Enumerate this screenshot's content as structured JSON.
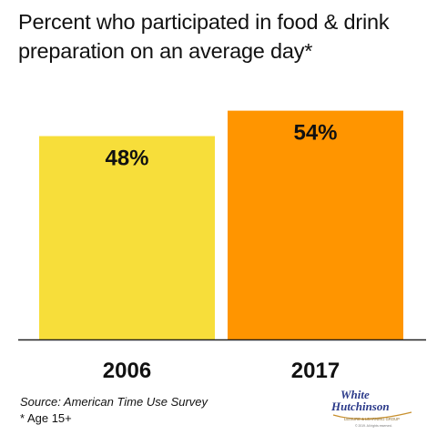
{
  "title": "Percent who participated in food & drink preparation on an average day*",
  "footnotes": {
    "source": "Source: American Time Use Survey",
    "age": "* Age 15+"
  },
  "logo": {
    "line1": "White",
    "line2": "Hutchinson",
    "tagline": "LEISURE & LEARNING GROUP",
    "small": "© 2019. All rights reserved."
  },
  "colors": {
    "bar_2006": "#F7DE3A",
    "bar_2017": "#FF9500",
    "axis": "#222222",
    "text": "#111111"
  },
  "chart_data": {
    "type": "bar",
    "title": "Percent who participated in food & drink preparation on an average day*",
    "categories": [
      "2006",
      "2017"
    ],
    "values": [
      48,
      54
    ],
    "value_labels": [
      "48%",
      "54%"
    ],
    "ylim": [
      0,
      58
    ],
    "grid": false,
    "legend": "none"
  }
}
